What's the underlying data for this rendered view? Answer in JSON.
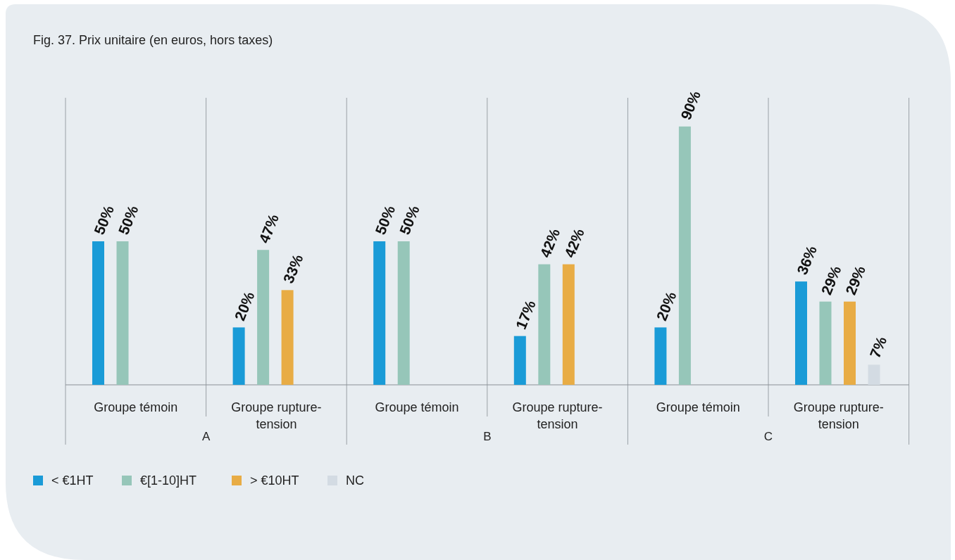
{
  "chart_data": {
    "type": "bar",
    "title": "Fig. 37. Prix unitaire (en euros, hors taxes)",
    "categories": [
      "Groupe témoin",
      "Groupe rupture-tension",
      "Groupe témoin",
      "Groupe rupture-tension",
      "Groupe témoin",
      "Groupe rupture-tension"
    ],
    "annotations": [
      "A",
      "B",
      "C"
    ],
    "ylim": [
      0,
      100
    ],
    "series": [
      {
        "name": "< €1HT",
        "color": "#1a9bd7",
        "values": [
          50,
          20,
          50,
          17,
          20,
          36
        ],
        "value_labels": [
          "50%",
          "20%",
          "50%",
          "17%",
          "20%",
          "36%"
        ]
      },
      {
        "name": "€[1-10]HT",
        "color": "#96c6b9",
        "values": [
          50,
          47,
          50,
          42,
          90,
          29
        ],
        "value_labels": [
          "50%",
          "47%",
          "50%",
          "42%",
          "90%",
          "29%"
        ]
      },
      {
        "name": "> €10HT",
        "color": "#e8ac45",
        "values": [
          null,
          33,
          null,
          42,
          null,
          29
        ],
        "value_labels": [
          null,
          "33%",
          null,
          "42%",
          null,
          "29%"
        ]
      },
      {
        "name": "NC",
        "color": "#d3dbe3",
        "values": [
          null,
          null,
          null,
          null,
          null,
          7
        ],
        "value_labels": [
          null,
          null,
          null,
          null,
          null,
          "7%"
        ]
      }
    ],
    "legend": "bottom"
  }
}
